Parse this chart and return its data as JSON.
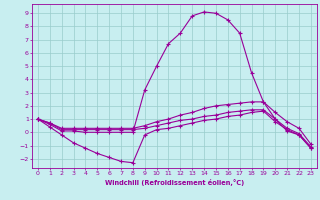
{
  "background_color": "#c8eef0",
  "grid_color": "#99cccc",
  "line_color": "#990099",
  "xlabel": "Windchill (Refroidissement éolien,°C)",
  "xlim": [
    -0.5,
    23.5
  ],
  "ylim": [
    -2.7,
    9.7
  ],
  "xticks": [
    0,
    1,
    2,
    3,
    4,
    5,
    6,
    7,
    8,
    9,
    10,
    11,
    12,
    13,
    14,
    15,
    16,
    17,
    18,
    19,
    20,
    21,
    22,
    23
  ],
  "yticks": [
    -2,
    -1,
    0,
    1,
    2,
    3,
    4,
    5,
    6,
    7,
    8,
    9
  ],
  "line_main": [
    1.0,
    0.6,
    0.1,
    0.1,
    0.0,
    0.0,
    0.0,
    0.0,
    0.0,
    3.2,
    5.0,
    6.7,
    7.5,
    8.8,
    9.1,
    9.0,
    8.5,
    7.5,
    4.5,
    2.3,
    1.0,
    0.1,
    -0.2,
    -1.2
  ],
  "line_upper": [
    1.0,
    0.7,
    0.3,
    0.3,
    0.3,
    0.3,
    0.3,
    0.3,
    0.3,
    0.5,
    0.8,
    1.0,
    1.3,
    1.5,
    1.8,
    2.0,
    2.1,
    2.2,
    2.3,
    2.3,
    1.5,
    0.8,
    0.3,
    -0.9
  ],
  "line_mid": [
    1.0,
    0.7,
    0.2,
    0.2,
    0.2,
    0.2,
    0.2,
    0.2,
    0.2,
    0.3,
    0.5,
    0.7,
    0.9,
    1.0,
    1.2,
    1.3,
    1.5,
    1.6,
    1.7,
    1.7,
    1.0,
    0.3,
    -0.1,
    -1.1
  ],
  "line_low": [
    1.0,
    0.4,
    -0.2,
    -0.8,
    -1.2,
    -1.6,
    -1.9,
    -2.2,
    -2.3,
    -0.2,
    0.2,
    0.3,
    0.5,
    0.7,
    0.9,
    1.0,
    1.2,
    1.3,
    1.5,
    1.6,
    0.8,
    0.2,
    -0.2,
    -1.2
  ]
}
